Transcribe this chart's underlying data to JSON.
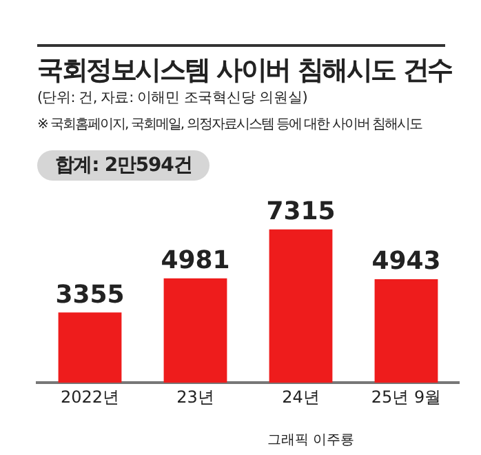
{
  "chart_data": {
    "type": "bar",
    "title": "국회정보시스템 사이버 침해시도 건수",
    "subtitle": "(단위: 건, 자료: 이해민 조국혁신당 의원실)",
    "annotations": [
      "※ 국회홈페이지, 국회메일, 의정자료시스템 등에 대한 사이버 침해시도",
      "합계: 2만594건",
      "그래픽 이주룡"
    ],
    "categories": [
      "2022년",
      "23년",
      "24년",
      "25년 9월"
    ],
    "values": [
      3355,
      4981,
      7315,
      4943
    ],
    "color": "#ee1c1c",
    "data_labels": true,
    "grid": false,
    "legend": false
  }
}
